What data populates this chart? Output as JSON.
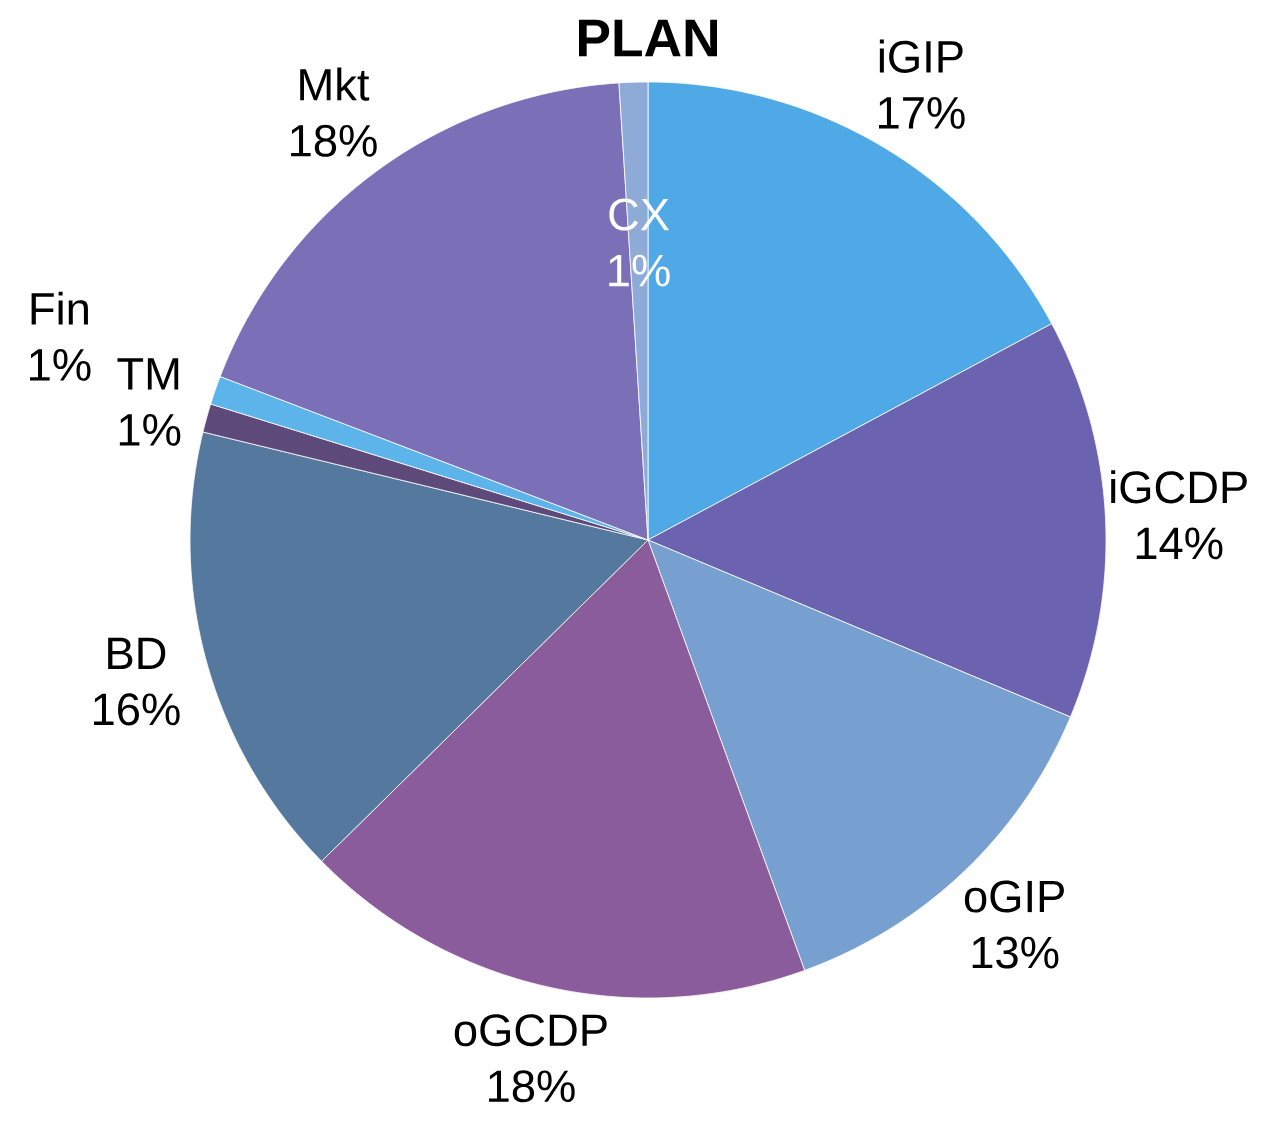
{
  "chart_data": {
    "type": "pie",
    "title": "PLAN",
    "categories": [
      "iGIP",
      "iGCDP",
      "oGIP",
      "oGCDP",
      "BD",
      "TM",
      "Fin",
      "Mkt",
      "CX"
    ],
    "values": [
      17,
      14,
      13,
      18,
      16,
      1,
      1,
      18,
      1
    ],
    "value_labels": [
      "17%",
      "14%",
      "13%",
      "18%",
      "16%",
      "1%",
      "1%",
      "18%",
      "1%"
    ],
    "colors": [
      "#4ea9e6",
      "#6b62b0",
      "#779fd0",
      "#8a5c9c",
      "#55789e",
      "#5e4a7a",
      "#5db4ea",
      "#7b70b8",
      "#8eabd8"
    ]
  }
}
